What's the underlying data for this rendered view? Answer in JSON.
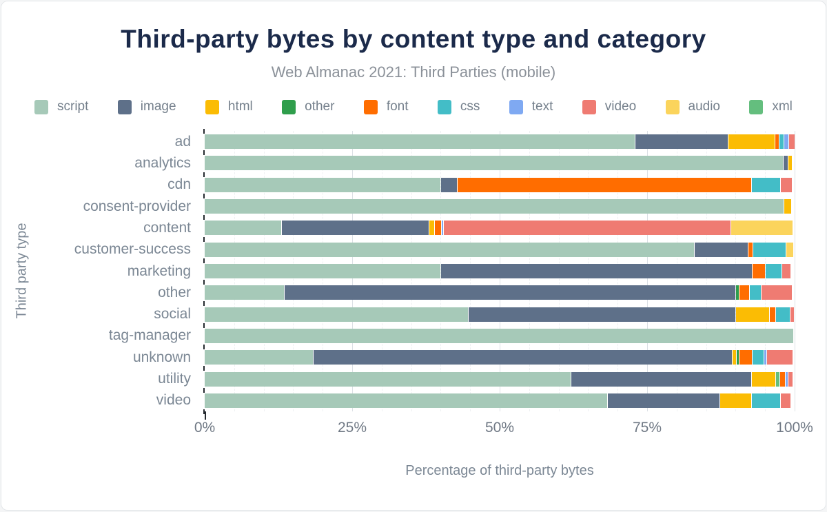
{
  "header": {
    "title": "Third-party bytes by content type and category",
    "subtitle": "Web Almanac 2021: Third Parties (mobile)"
  },
  "legend": [
    {
      "type": "script",
      "label": "script"
    },
    {
      "type": "image",
      "label": "image"
    },
    {
      "type": "html",
      "label": "html"
    },
    {
      "type": "other",
      "label": "other"
    },
    {
      "type": "font",
      "label": "font"
    },
    {
      "type": "css",
      "label": "css"
    },
    {
      "type": "text",
      "label": "text"
    },
    {
      "type": "video",
      "label": "video"
    },
    {
      "type": "audio",
      "label": "audio"
    },
    {
      "type": "xml",
      "label": "xml"
    }
  ],
  "axes": {
    "x_ticks": [
      "0%",
      "25%",
      "50%",
      "75%",
      "100%"
    ],
    "x_label": "Percentage of third-party bytes",
    "y_label": "Third party type"
  },
  "chart_data": {
    "type": "bar",
    "orientation": "horizontal-stacked",
    "title": "Third-party bytes by content type and category",
    "subtitle": "Web Almanac 2021: Third Parties (mobile)",
    "xlabel": "Percentage of third-party bytes",
    "ylabel": "Third party type",
    "xlim": [
      0,
      100
    ],
    "unit": "percent of third-party bytes",
    "grid": {
      "minor_step": 5,
      "major_step": 25
    },
    "legend_position": "top",
    "colors": {
      "script": "#A6C9B8",
      "image": "#5E7089",
      "html": "#FBBC04",
      "other": "#2F9E4C",
      "font": "#FF6D00",
      "css": "#43BDC7",
      "text": "#7FA9F2",
      "video": "#EF7B72",
      "audio": "#FBD45C",
      "xml": "#64BE7E"
    },
    "categories": [
      "ad",
      "analytics",
      "cdn",
      "consent-provider",
      "content",
      "customer-success",
      "marketing",
      "other",
      "social",
      "tag-manager",
      "unknown",
      "utility",
      "video"
    ],
    "rows": [
      {
        "label": "ad",
        "segments": [
          [
            "script",
            73.3
          ],
          [
            "image",
            15.7
          ],
          [
            "html",
            7.9
          ],
          [
            "font",
            0.6
          ],
          [
            "css",
            0.6
          ],
          [
            "text",
            0.8
          ],
          [
            "video",
            0.9
          ]
        ]
      },
      {
        "label": "analytics",
        "segments": [
          [
            "script",
            98.0
          ],
          [
            "image",
            0.7
          ],
          [
            "html",
            0.6
          ]
        ]
      },
      {
        "label": "cdn",
        "segments": [
          [
            "script",
            39.9
          ],
          [
            "image",
            2.7
          ],
          [
            "font",
            49.8
          ],
          [
            "css",
            4.8
          ],
          [
            "video",
            1.9
          ]
        ]
      },
      {
        "label": "consent-provider",
        "segments": [
          [
            "script",
            98.1
          ],
          [
            "html",
            1.2
          ]
        ]
      },
      {
        "label": "content",
        "segments": [
          [
            "script",
            13.0
          ],
          [
            "image",
            24.9
          ],
          [
            "html",
            0.8
          ],
          [
            "font",
            1.0
          ],
          [
            "text",
            0.3
          ],
          [
            "video",
            48.5
          ],
          [
            "audio",
            10.5
          ]
        ]
      },
      {
        "label": "customer-success",
        "segments": [
          [
            "script",
            82.9
          ],
          [
            "image",
            9.0
          ],
          [
            "font",
            0.7
          ],
          [
            "css",
            5.5
          ],
          [
            "audio",
            1.2
          ]
        ]
      },
      {
        "label": "marketing",
        "segments": [
          [
            "script",
            39.9
          ],
          [
            "image",
            52.7
          ],
          [
            "font",
            2.2
          ],
          [
            "css",
            2.6
          ],
          [
            "video",
            1.4
          ]
        ]
      },
      {
        "label": "other",
        "segments": [
          [
            "script",
            13.4
          ],
          [
            "image",
            76.4
          ],
          [
            "other",
            0.5
          ],
          [
            "font",
            1.6
          ],
          [
            "css",
            1.9
          ],
          [
            "video",
            5.2
          ]
        ]
      },
      {
        "label": "social",
        "segments": [
          [
            "script",
            44.6
          ],
          [
            "image",
            45.2
          ],
          [
            "html",
            5.7
          ],
          [
            "font",
            0.9
          ],
          [
            "css",
            2.3
          ],
          [
            "video",
            0.6
          ]
        ]
      },
      {
        "label": "tag-manager",
        "segments": [
          [
            "script",
            99.8
          ]
        ]
      },
      {
        "label": "unknown",
        "segments": [
          [
            "script",
            18.3
          ],
          [
            "image",
            71.0
          ],
          [
            "html",
            0.5
          ],
          [
            "other",
            0.4
          ],
          [
            "font",
            2.1
          ],
          [
            "css",
            1.9
          ],
          [
            "text",
            0.3
          ],
          [
            "video",
            4.3
          ]
        ]
      },
      {
        "label": "utility",
        "segments": [
          [
            "script",
            62.0
          ],
          [
            "image",
            30.5
          ],
          [
            "html",
            4.0
          ],
          [
            "xml",
            0.6
          ],
          [
            "font",
            0.8
          ],
          [
            "text",
            0.3
          ],
          [
            "video",
            0.7
          ]
        ]
      },
      {
        "label": "video",
        "segments": [
          [
            "script",
            68.2
          ],
          [
            "image",
            18.9
          ],
          [
            "html",
            5.3
          ],
          [
            "css",
            4.8
          ],
          [
            "video",
            1.6
          ]
        ]
      }
    ]
  }
}
